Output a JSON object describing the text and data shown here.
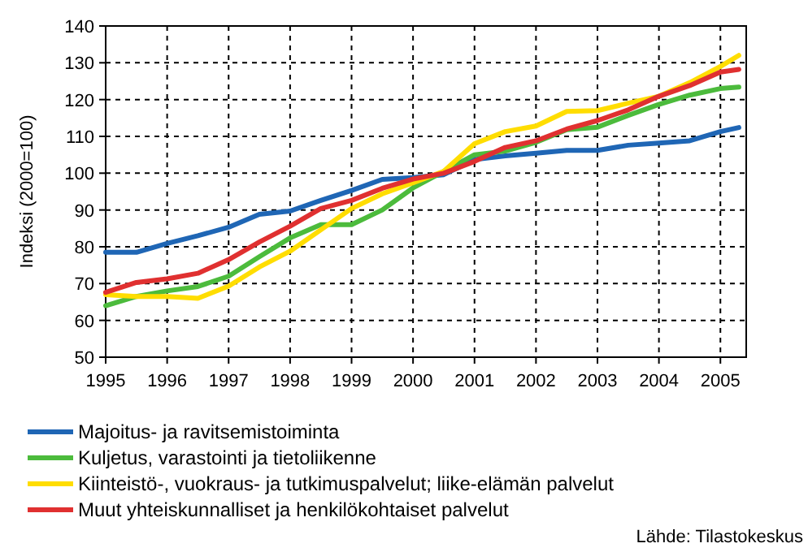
{
  "chart_data": {
    "type": "line",
    "ylabel": "Indeksi (2000=100)",
    "x": [
      1995,
      1995.5,
      1996,
      1996.5,
      1997,
      1997.5,
      1998,
      1998.5,
      1999,
      1999.5,
      2000,
      2000.5,
      2001,
      2001.5,
      2002,
      2002.5,
      2003,
      2003.5,
      2004,
      2004.5,
      2005,
      2005.3
    ],
    "series": [
      {
        "name": "Majoitus- ja ravitsemistoiminta",
        "color": "#1f66b5",
        "values": [
          78.5,
          78.5,
          80.9,
          83,
          85.3,
          88.8,
          89.7,
          92.6,
          95.3,
          98.3,
          98.8,
          99.6,
          103.7,
          104.7,
          105.4,
          106.2,
          106.2,
          107.6,
          108.2,
          108.8,
          111.3,
          112.4
        ]
      },
      {
        "name": "Kuljetus, varastointi ja tietoliikenne",
        "color": "#4cbb3c",
        "values": [
          64,
          66.5,
          68,
          69.2,
          72,
          77.3,
          82.4,
          86,
          86,
          90,
          96,
          100.5,
          105,
          106,
          108.4,
          111.8,
          112.5,
          115.7,
          118.7,
          121.2,
          123,
          123.4
        ]
      },
      {
        "name": "Kiinteistö-, vuokraus- ja tutkimuspalvelut; liike-elämän palvelut",
        "color": "#ffdd00",
        "values": [
          67,
          66.5,
          66.5,
          66,
          69.3,
          74.5,
          78.8,
          84.6,
          90.4,
          94.4,
          97.4,
          100.5,
          108,
          111.3,
          112.8,
          116.8,
          117,
          119,
          120.9,
          124.6,
          129,
          132
        ]
      },
      {
        "name": "Muut yhteiskunnalliset ja henkilökohtaiset palvelut",
        "color": "#e03030",
        "values": [
          67.6,
          70.3,
          71.3,
          72.8,
          76.5,
          81.3,
          85.6,
          90.4,
          92.6,
          95.9,
          98.4,
          100,
          103.2,
          107,
          108.8,
          112,
          114.3,
          117.2,
          120.9,
          123.8,
          127.5,
          128.2
        ]
      }
    ],
    "xlim": [
      1995,
      2005.42
    ],
    "xticks": [
      1995,
      1996,
      1997,
      1998,
      1999,
      2000,
      2001,
      2002,
      2003,
      2004,
      2005
    ],
    "ylim": [
      50,
      140
    ],
    "yticks": [
      50,
      60,
      70,
      80,
      90,
      100,
      110,
      120,
      130,
      140
    ],
    "grid": true,
    "legend": "bottom",
    "marker": "none",
    "line_style": "solid",
    "annotations": [
      "Lähde: Tilastokeskus"
    ]
  }
}
